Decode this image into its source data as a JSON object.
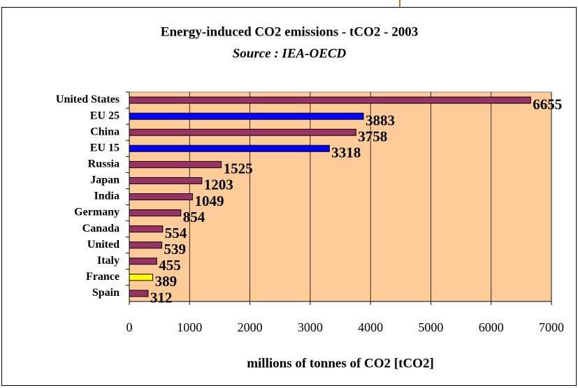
{
  "chart_data": {
    "type": "barh",
    "title": "Energy-induced CO2 emissions - tCO2 - 2003",
    "subtitle": "Source : IEA-OECD",
    "x_label": "millions of tonnes of CO2 [tCO2]",
    "categories": [
      "United States",
      "EU 25",
      "China",
      "EU 15",
      "Russia",
      "Japan",
      "India",
      "Germany",
      "Canada",
      "United",
      "Italy",
      "France",
      "Spain"
    ],
    "values": [
      6655,
      3883,
      3758,
      3318,
      1525,
      1203,
      1049,
      854,
      554,
      539,
      455,
      389,
      312
    ],
    "colors": [
      "#993366",
      "#0000ff",
      "#993366",
      "#0000ff",
      "#993366",
      "#993366",
      "#993366",
      "#993366",
      "#993366",
      "#993366",
      "#993366",
      "#ffff00",
      "#993366"
    ],
    "xlim": [
      0,
      7000
    ],
    "xticks": [
      0,
      1000,
      2000,
      3000,
      4000,
      5000,
      6000,
      7000
    ],
    "grid": true,
    "background": "#ffcc99"
  }
}
